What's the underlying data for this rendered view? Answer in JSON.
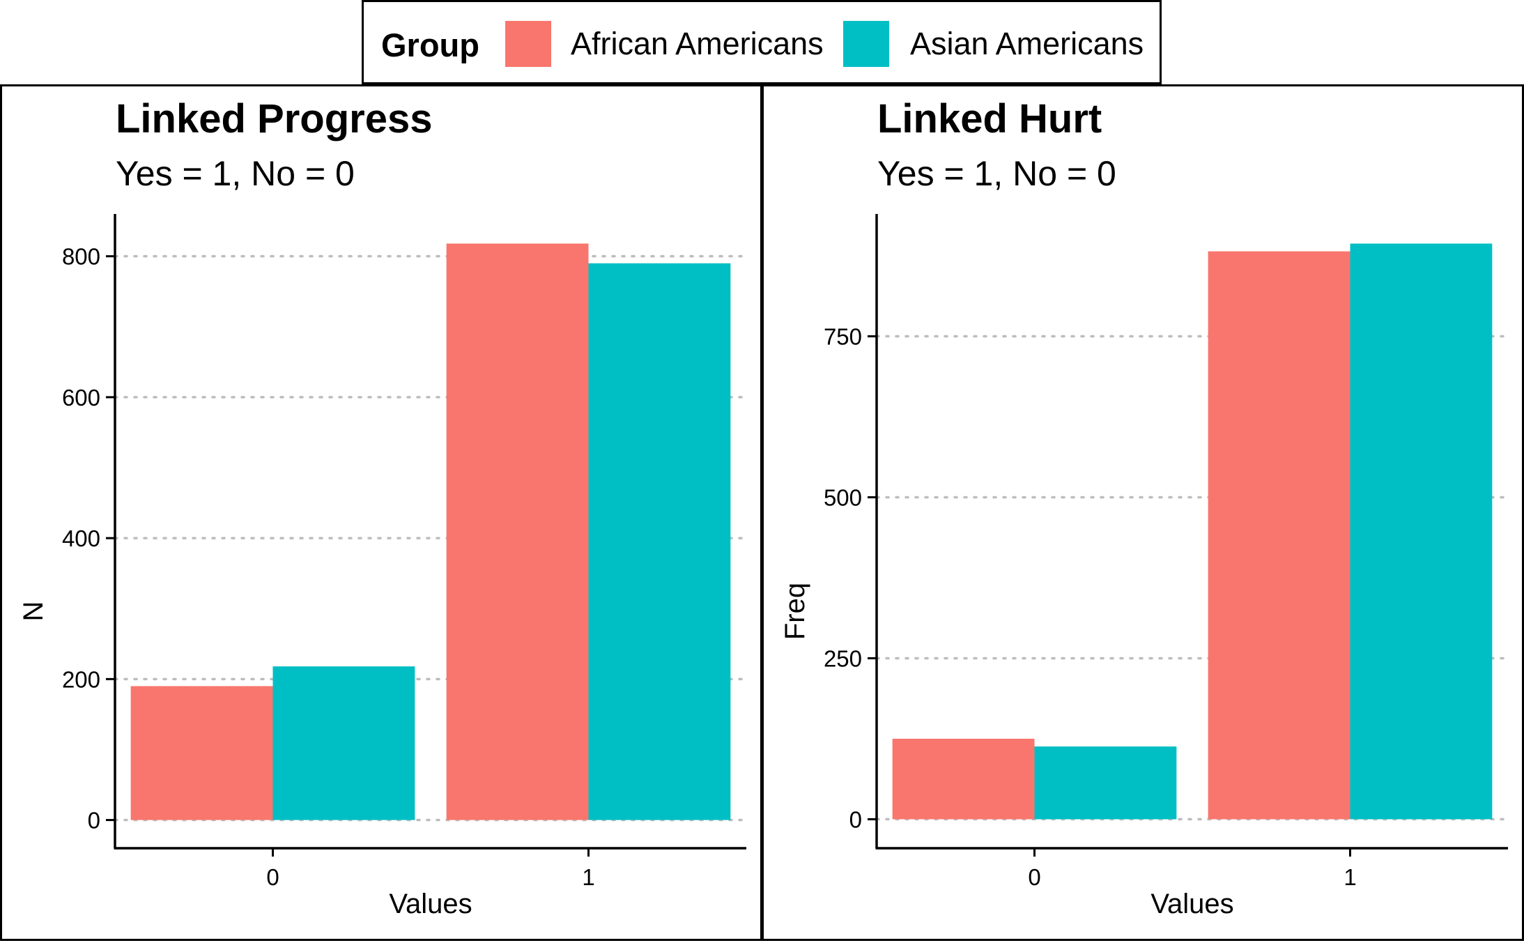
{
  "legend": {
    "title": "Group",
    "entries": [
      {
        "label": "African Americans",
        "color": "#F8766D"
      },
      {
        "label": "Asian Americans",
        "color": "#00BFC4"
      }
    ]
  },
  "chart_data": [
    {
      "type": "bar",
      "title": "Linked Progress",
      "subtitle": "Yes = 1, No = 0",
      "xlabel": "Values",
      "ylabel": "N",
      "categories": [
        "0",
        "1"
      ],
      "series": [
        {
          "name": "African Americans",
          "color": "#F8766D",
          "values": [
            190,
            818
          ]
        },
        {
          "name": "Asian Americans",
          "color": "#00BFC4",
          "values": [
            218,
            790
          ]
        }
      ],
      "yticks": [
        0,
        200,
        400,
        600,
        800
      ],
      "ylim": [
        -40,
        860
      ],
      "grid": "horizontal-dotted"
    },
    {
      "type": "bar",
      "title": "Linked Hurt",
      "subtitle": "Yes = 1, No = 0",
      "xlabel": "Values",
      "ylabel": "Freq",
      "categories": [
        "0",
        "1"
      ],
      "series": [
        {
          "name": "African Americans",
          "color": "#F8766D",
          "values": [
            125,
            882
          ]
        },
        {
          "name": "Asian Americans",
          "color": "#00BFC4",
          "values": [
            113,
            894
          ]
        }
      ],
      "yticks": [
        0,
        250,
        500,
        750
      ],
      "ylim": [
        -45,
        940
      ],
      "grid": "horizontal-dotted"
    }
  ]
}
